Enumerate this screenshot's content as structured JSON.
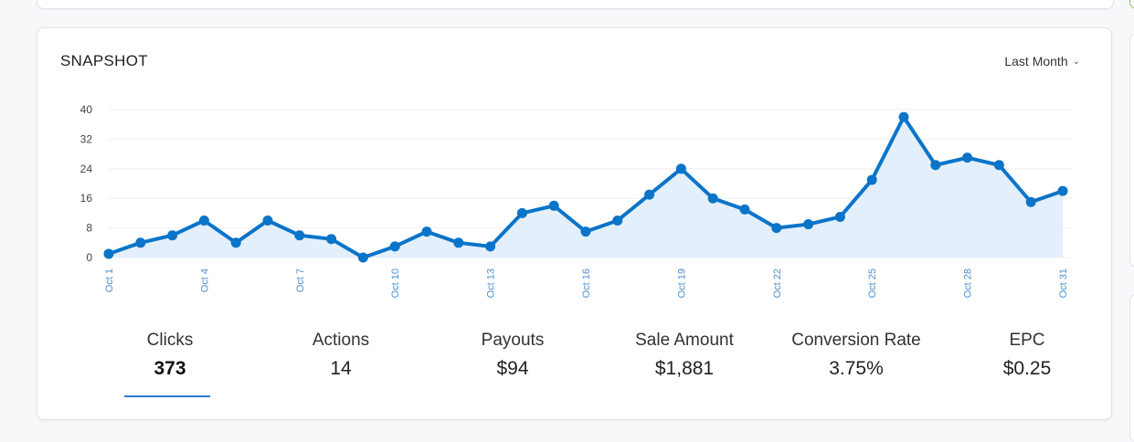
{
  "card": {
    "title": "SNAPSHOT",
    "range_label": "Last Month",
    "range_icon": "chevron-down-icon"
  },
  "colors": {
    "line": "#0a74c9",
    "fill": "#e3effa",
    "grid": "#eeeeee",
    "active_underline": "#2a7bd0"
  },
  "chart_data": {
    "type": "area",
    "x": [
      "Oct 1",
      "Oct 2",
      "Oct 3",
      "Oct 4",
      "Oct 5",
      "Oct 6",
      "Oct 7",
      "Oct 8",
      "Oct 9",
      "Oct 10",
      "Oct 11",
      "Oct 12",
      "Oct 13",
      "Oct 14",
      "Oct 15",
      "Oct 16",
      "Oct 17",
      "Oct 18",
      "Oct 19",
      "Oct 20",
      "Oct 21",
      "Oct 22",
      "Oct 23",
      "Oct 24",
      "Oct 25",
      "Oct 26",
      "Oct 27",
      "Oct 28",
      "Oct 29",
      "Oct 30",
      "Oct 31"
    ],
    "x_tick_labels": [
      "Oct 1",
      "Oct 4",
      "Oct 7",
      "Oct 10",
      "Oct 13",
      "Oct 16",
      "Oct 19",
      "Oct 22",
      "Oct 25",
      "Oct 28",
      "Oct 31"
    ],
    "values": [
      1,
      4,
      6,
      10,
      4,
      10,
      6,
      5,
      0,
      3,
      7,
      4,
      3,
      12,
      14,
      7,
      10,
      17,
      24,
      16,
      13,
      8,
      9,
      11,
      21,
      38,
      25,
      27,
      25,
      15,
      18
    ],
    "y_ticks": [
      0,
      8,
      16,
      24,
      32,
      40
    ],
    "ylim": [
      0,
      40
    ],
    "grid": true
  },
  "stats": [
    {
      "label": "Clicks",
      "value": "373",
      "active": true
    },
    {
      "label": "Actions",
      "value": "14",
      "active": false
    },
    {
      "label": "Payouts",
      "value": "$94",
      "active": false
    },
    {
      "label": "Sale Amount",
      "value": "$1,881",
      "active": false
    },
    {
      "label": "Conversion Rate",
      "value": "3.75%",
      "active": false
    },
    {
      "label": "EPC",
      "value": "$0.25",
      "active": false
    }
  ]
}
